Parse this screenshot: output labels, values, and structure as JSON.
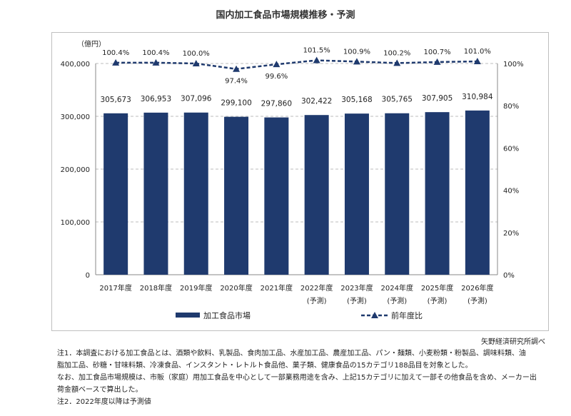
{
  "chart_data": {
    "type": "bar",
    "title": "国内加工食品市場規模推移・予測",
    "unit_label": "（億円）",
    "categories": [
      "2017年度",
      "2018年度",
      "2019年度",
      "2020年度",
      "2021年度",
      "2022年度",
      "2023年度",
      "2024年度",
      "2025年度",
      "2026年度"
    ],
    "category_sublabels": [
      "",
      "",
      "",
      "",
      "",
      "(予測)",
      "(予測)",
      "(予測)",
      "(予測)",
      "(予測)"
    ],
    "series": [
      {
        "name": "加工食品市場",
        "type": "bar",
        "axis": "left",
        "color": "#1f3a6e",
        "values": [
          305673,
          306953,
          307096,
          299100,
          297860,
          302422,
          305168,
          305765,
          307905,
          310984
        ],
        "labels": [
          "305,673",
          "306,953",
          "307,096",
          "299,100",
          "297,860",
          "302,422",
          "305,168",
          "305,765",
          "307,905",
          "310,984"
        ]
      },
      {
        "name": "前年度比",
        "type": "line",
        "axis": "right",
        "color": "#1f3a6e",
        "line_style": "dashed",
        "marker": "triangle",
        "values": [
          100.4,
          100.4,
          100.0,
          97.4,
          99.6,
          101.5,
          100.9,
          100.2,
          100.7,
          101.0
        ],
        "labels": [
          "100.4%",
          "100.4%",
          "100.0%",
          "97.4%",
          "99.6%",
          "101.5%",
          "100.9%",
          "100.2%",
          "100.7%",
          "101.0%"
        ]
      }
    ],
    "y_left": {
      "ylim": [
        0,
        400000
      ],
      "ticks": [
        "0",
        "100,000",
        "200,000",
        "300,000",
        "400,000"
      ]
    },
    "y_right": {
      "ylim": [
        0,
        100
      ],
      "ticks": [
        "0%",
        "20%",
        "40%",
        "60%",
        "80%",
        "100%"
      ]
    },
    "grid": "horizontal dashed",
    "legend_position": "bottom"
  },
  "source": "矢野経済研究所調べ",
  "notes": [
    "注1．本調査における加工食品とは、酒類や飲料、乳製品、食肉加工品、水産加工品、農産加工品、パン・麺類、小麦粉類・粉製品、調味料類、油",
    "脂加工品、砂糖・甘味料類、冷凍食品、インスタント・レトルト食品他、菓子類、健康食品の15カテゴリ188品目を対象とした。",
    "なお、加工食品市場規模は、市販（家庭）用加工食品を中心として一部業務用途を含み、上記15カテゴリに加えて一部その他食品を含め、メーカー出",
    "荷金額ベースで算出した。",
    "注2．2022年度以降は予測値"
  ]
}
